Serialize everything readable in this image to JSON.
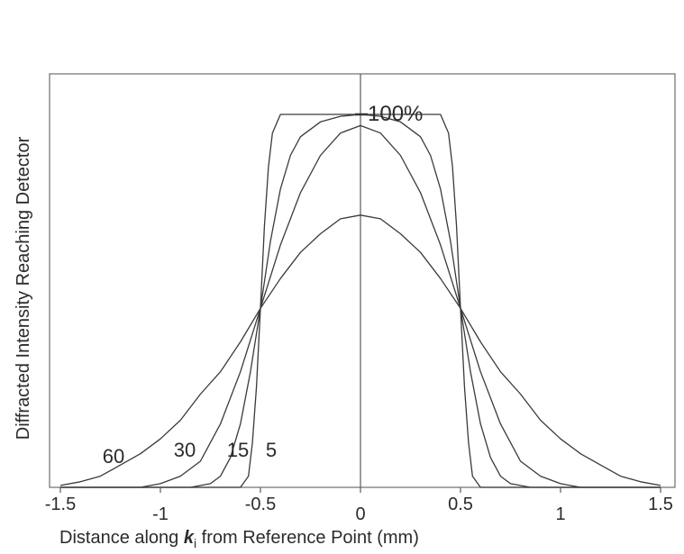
{
  "chart_data": {
    "type": "line",
    "title": "",
    "xlabel": {
      "prefix": "Distance along ",
      "symbol": "k",
      "subscript": "i",
      "suffix": " from Reference Point (mm)"
    },
    "ylabel": "Diffracted Intensity Reaching Detector",
    "xlim": [
      -1.5,
      1.5
    ],
    "ylim": [
      0,
      100
    ],
    "x_ticks": [
      -1.5,
      -1,
      -0.5,
      0,
      0.5,
      1,
      1.5
    ],
    "x_tick_labels": [
      "-1.5",
      "-1",
      "-0.5",
      "0",
      "0.5",
      "1",
      "1.5"
    ],
    "grid": false,
    "annotation": {
      "text": "100%",
      "x": 0,
      "y": 100
    },
    "series": [
      {
        "name": "5",
        "color": "#3a3a3a",
        "x": [
          -1.5,
          -0.6,
          -0.56,
          -0.54,
          -0.52,
          -0.5,
          -0.48,
          -0.46,
          -0.44,
          -0.4,
          -0.3,
          0,
          0.3,
          0.4,
          0.44,
          0.46,
          0.48,
          0.5,
          0.52,
          0.54,
          0.56,
          0.6,
          1.5
        ],
        "y": [
          0,
          0,
          3,
          12,
          27,
          48,
          70,
          86,
          95,
          100,
          100,
          100,
          100,
          100,
          95,
          86,
          70,
          48,
          27,
          12,
          3,
          0,
          0
        ]
      },
      {
        "name": "15",
        "color": "#3a3a3a",
        "x": [
          -1.5,
          -0.85,
          -0.75,
          -0.7,
          -0.65,
          -0.6,
          -0.55,
          -0.5,
          -0.45,
          -0.4,
          -0.35,
          -0.3,
          -0.2,
          -0.1,
          0,
          0.1,
          0.2,
          0.3,
          0.35,
          0.4,
          0.45,
          0.5,
          0.55,
          0.6,
          0.65,
          0.7,
          0.75,
          0.85,
          1.5
        ],
        "y": [
          0,
          0,
          1,
          3,
          8,
          17,
          31,
          48,
          66,
          80,
          89,
          94,
          98,
          99.5,
          100,
          99.5,
          98,
          94,
          89,
          80,
          66,
          48,
          31,
          17,
          8,
          3,
          1,
          0,
          0
        ]
      },
      {
        "name": "30",
        "color": "#3a3a3a",
        "x": [
          -1.5,
          -1.1,
          -1.0,
          -0.9,
          -0.8,
          -0.7,
          -0.6,
          -0.5,
          -0.4,
          -0.3,
          -0.2,
          -0.1,
          0,
          0.1,
          0.2,
          0.3,
          0.4,
          0.5,
          0.6,
          0.7,
          0.8,
          0.9,
          1.0,
          1.1,
          1.5
        ],
        "y": [
          0,
          0,
          1,
          3,
          7,
          17,
          31,
          48,
          65,
          79,
          89,
          95,
          97,
          95,
          89,
          79,
          65,
          48,
          31,
          17,
          7,
          3,
          1,
          0,
          0
        ]
      },
      {
        "name": "60",
        "color": "#3a3a3a",
        "x": [
          -1.5,
          -1.4,
          -1.3,
          -1.2,
          -1.1,
          -1.0,
          -0.9,
          -0.8,
          -0.7,
          -0.6,
          -0.5,
          -0.4,
          -0.3,
          -0.2,
          -0.1,
          0,
          0.1,
          0.2,
          0.3,
          0.4,
          0.5,
          0.6,
          0.7,
          0.8,
          0.9,
          1.0,
          1.1,
          1.2,
          1.3,
          1.4,
          1.5
        ],
        "y": [
          0.5,
          1.5,
          3,
          6,
          9,
          13,
          18,
          25,
          31,
          39,
          48,
          56,
          63,
          68,
          72,
          73,
          72,
          68,
          63,
          56,
          48,
          39,
          31,
          25,
          18,
          13,
          9,
          6,
          3,
          1.5,
          0.5
        ]
      }
    ]
  }
}
